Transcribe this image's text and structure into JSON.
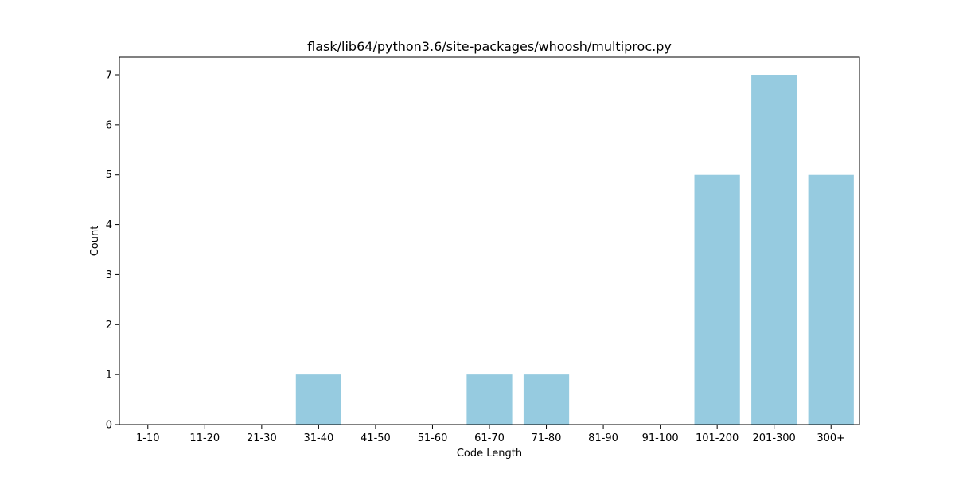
{
  "chart_data": {
    "type": "bar",
    "title": "flask/lib64/python3.6/site-packages/whoosh/multiproc.py",
    "xlabel": "Code Length",
    "ylabel": "Count",
    "categories": [
      "1-10",
      "11-20",
      "21-30",
      "31-40",
      "41-50",
      "51-60",
      "61-70",
      "71-80",
      "81-90",
      "91-100",
      "101-200",
      "201-300",
      "300+"
    ],
    "values": [
      0,
      0,
      0,
      1,
      0,
      0,
      1,
      1,
      0,
      0,
      5,
      7,
      5
    ],
    "ylim": [
      0,
      7.35
    ],
    "yticks": [
      0,
      1,
      2,
      3,
      4,
      5,
      6,
      7
    ],
    "bar_color": "#96cbe0",
    "grid": false,
    "legend": "none"
  }
}
